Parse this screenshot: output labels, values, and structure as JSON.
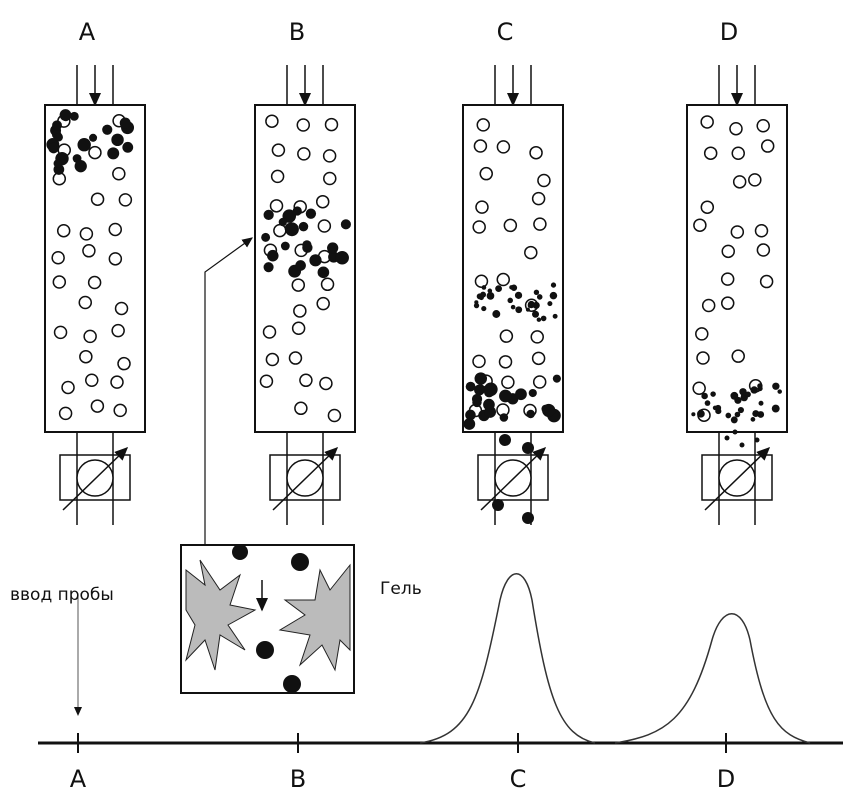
{
  "columns": [
    {
      "label": "A"
    },
    {
      "label": "B"
    },
    {
      "label": "C"
    },
    {
      "label": "D"
    }
  ],
  "axis": {
    "labels": [
      "A",
      "B",
      "C",
      "D"
    ]
  },
  "annotations": {
    "sample_input": "ввод пробы",
    "gel": "Гель"
  }
}
